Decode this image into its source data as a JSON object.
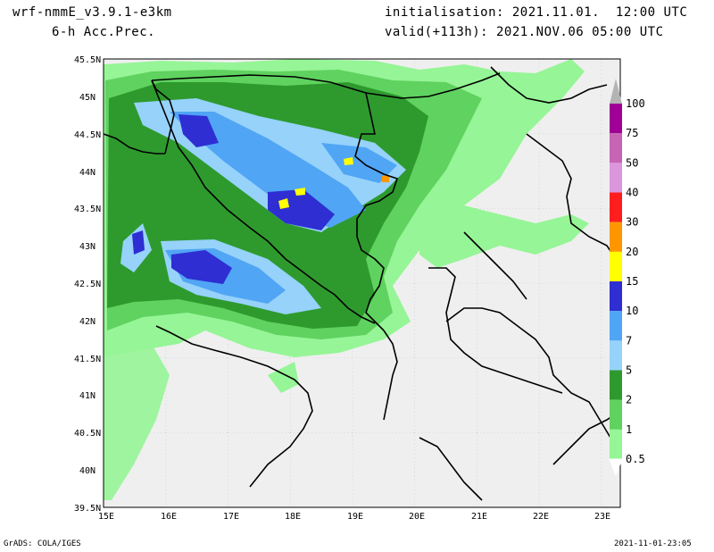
{
  "header": {
    "model": "wrf-nmmE_v3.9.1-e3km",
    "field": "6-h Acc.Prec.",
    "initialisation": "initialisation: 2021.11.01.  12:00 UTC",
    "valid": "valid(+113h): 2021.NOV.06 05:00 UTC"
  },
  "footer": {
    "credit": "GrADS: COLA/IGES",
    "timestamp": "2021-11-01-23:05"
  },
  "map": {
    "lon_labels": [
      "15E",
      "16E",
      "17E",
      "18E",
      "19E",
      "20E",
      "21E",
      "22E",
      "23E"
    ],
    "lat_labels": [
      "45.5N",
      "45N",
      "44.5N",
      "44N",
      "43.5N",
      "43N",
      "42.5N",
      "42N",
      "41.5N",
      "41N",
      "40.5N",
      "40N",
      "39.5N"
    ],
    "lon_range": [
      15,
      23.3
    ],
    "lat_range": [
      39.5,
      45.5
    ],
    "background_color": "#efefef",
    "border_color": "#000000"
  },
  "colorbar": {
    "levels": [
      "0.5",
      "1",
      "2",
      "5",
      "7",
      "10",
      "15",
      "20",
      "30",
      "40",
      "50",
      "75",
      "100"
    ],
    "colors": [
      "#96f596",
      "#5fd25f",
      "#2e9a2e",
      "#96d2fa",
      "#50a5f5",
      "#2e2ed2",
      "#ffff00",
      "#ff9600",
      "#ff1e1e",
      "#dc96dc",
      "#c864b4",
      "#a00096",
      "#b4b4b4"
    ]
  }
}
